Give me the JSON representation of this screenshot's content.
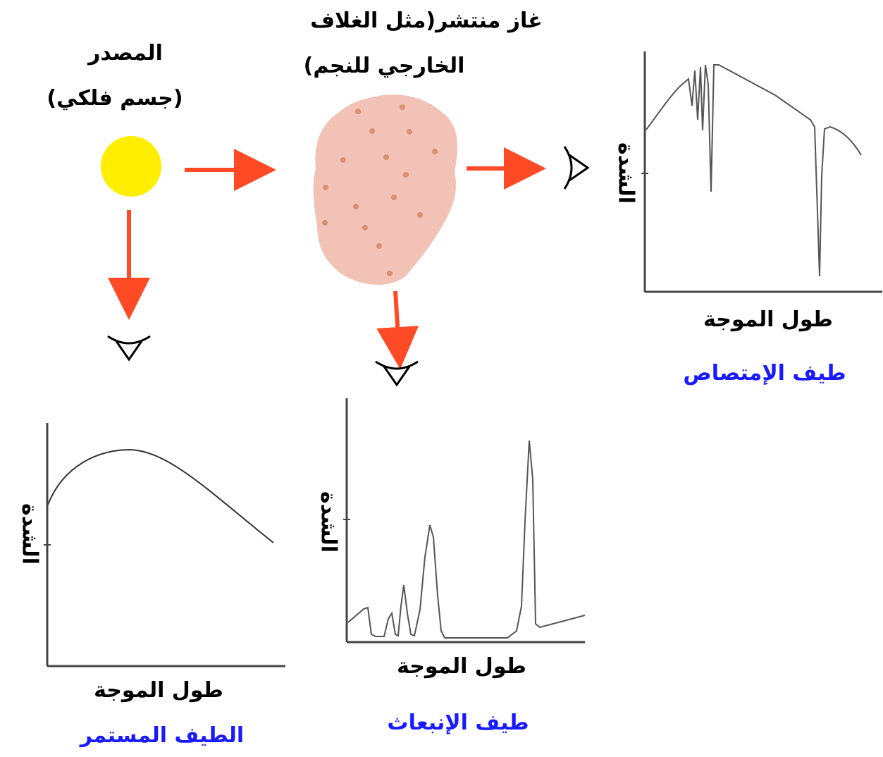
{
  "source": {
    "title": "المصدر",
    "subtitle": "(جسم فلكي)",
    "color": "#ffee00"
  },
  "gas": {
    "title_line1": "غاز منتشر(مثل الغلاف",
    "title_line2": "الخارجي للنجم)",
    "cloud_color": "#f2c2b6",
    "particle_color": "#d98f72"
  },
  "arrow_color": "#ff4a26",
  "panels": {
    "continuous": {
      "y_label": "الشدة",
      "x_label": "طول الموجة",
      "caption": "الطيف المستمر"
    },
    "emission": {
      "y_label": "الشدة",
      "x_label": "طول الموجة",
      "caption": "طيف الإنبعاث"
    },
    "absorption": {
      "y_label": "الشدة",
      "x_label": "طول الموجة",
      "caption": "طيف الإمتصاص"
    }
  }
}
